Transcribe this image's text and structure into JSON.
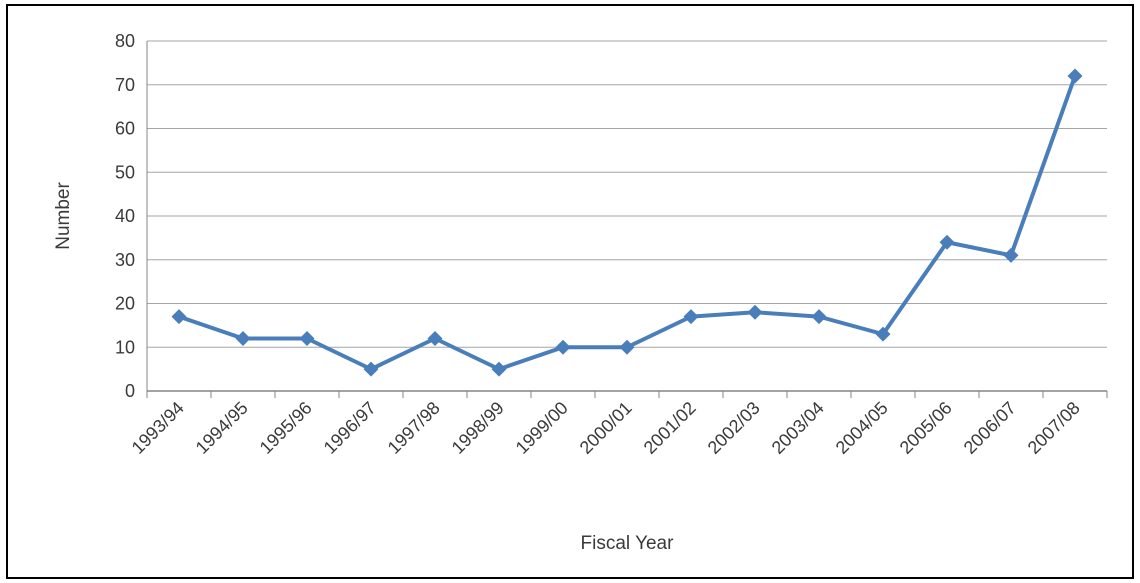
{
  "chart_data": {
    "type": "line",
    "xlabel": "Fiscal Year",
    "ylabel": "Number",
    "categories": [
      "1993/94",
      "1994/95",
      "1995/96",
      "1996/97",
      "1997/98",
      "1998/99",
      "1999/00",
      "2000/01",
      "2001/02",
      "2002/03",
      "2003/04",
      "2004/05",
      "2005/06",
      "2006/07",
      "2007/08"
    ],
    "series": [
      {
        "values": [
          17,
          12,
          12,
          5,
          12,
          5,
          10,
          10,
          17,
          18,
          17,
          13,
          34,
          31,
          72
        ]
      }
    ],
    "ylim": [
      0,
      80
    ],
    "yticks": [
      0,
      10,
      20,
      30,
      40,
      50,
      60,
      70,
      80
    ],
    "grid": true,
    "marker": "diamond",
    "colors": {
      "line": "#4a7ebb",
      "grid": "#a6a6a6",
      "axis": "#868686"
    }
  }
}
